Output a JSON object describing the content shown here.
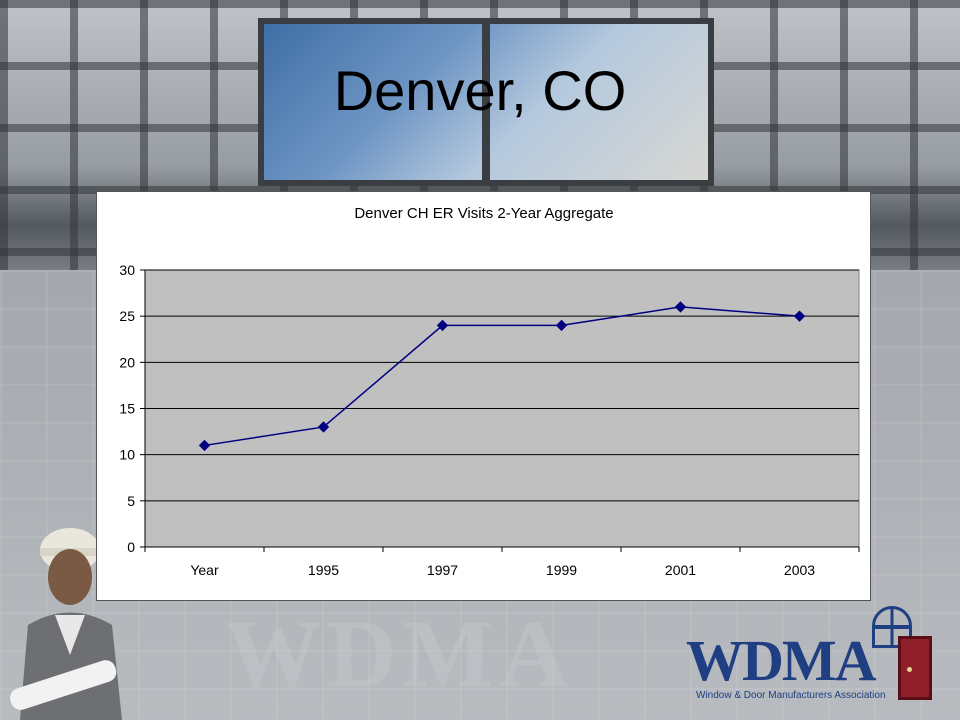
{
  "slide": {
    "title": "Denver, CO"
  },
  "logo": {
    "text": "WDMA",
    "subtitle": "Window & Door Manufacturers Association"
  },
  "watermark": {
    "text": "WDMA"
  },
  "chart_data": {
    "type": "line",
    "title": "Denver CH ER Visits 2-Year Aggregate",
    "xlabel": "",
    "ylabel": "",
    "categories": [
      "Year",
      "1995",
      "1997",
      "1999",
      "2001",
      "2003"
    ],
    "series": [
      {
        "values": [
          11,
          13,
          24,
          24,
          26,
          25
        ],
        "color": "#000080"
      }
    ],
    "ylim": [
      0,
      30
    ],
    "yticks": [
      0,
      5,
      10,
      15,
      20,
      25,
      30
    ],
    "grid": true,
    "legend": "none",
    "plot_background": "#c0c0c0",
    "marker": "diamond"
  }
}
